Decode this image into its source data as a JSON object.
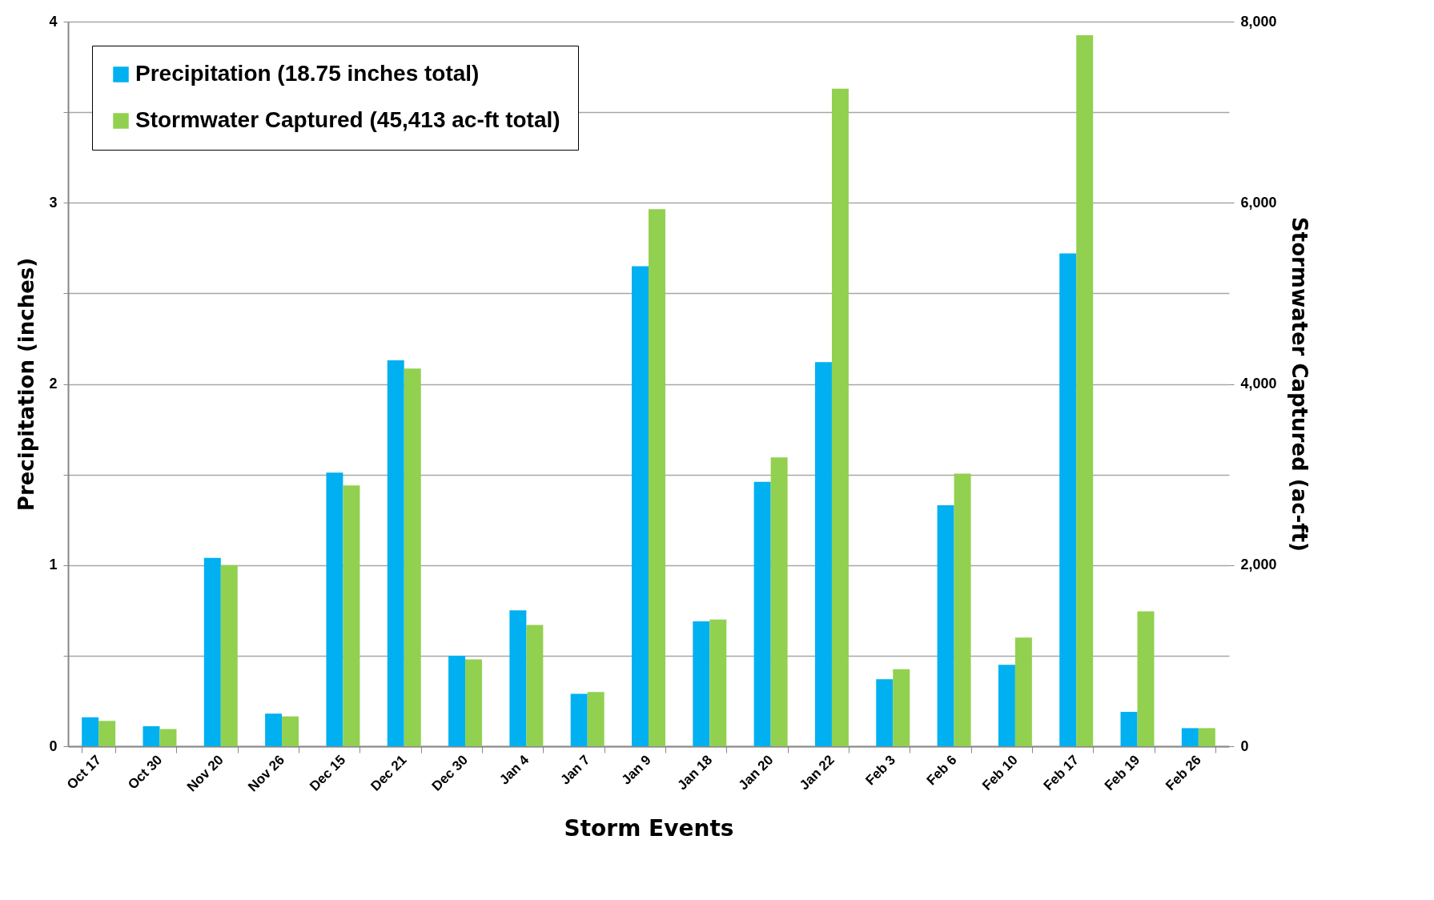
{
  "chart_data": {
    "type": "bar",
    "xlabel": "Storm Events",
    "ylabel": "Precipitation (inches)",
    "y2label": "Stormwater Captured (ac-ft)",
    "categories": [
      "Oct 17",
      "Oct 30",
      "Nov 20",
      "Nov 26",
      "Dec 15",
      "Dec 21",
      "Dec 30",
      "Jan 4",
      "Jan 7",
      "Jan 9",
      "Jan 18",
      "Jan 20",
      "Jan 22",
      "Feb 3",
      "Feb 6",
      "Feb 10",
      "Feb 17",
      "Feb 19",
      "Feb 26"
    ],
    "series": [
      {
        "name": "Precipitation (18.75 inches total)",
        "color": "#00b0f0",
        "values": [
          0.16,
          0.11,
          1.04,
          0.18,
          1.51,
          2.13,
          0.5,
          0.75,
          0.29,
          2.65,
          0.69,
          1.46,
          2.12,
          0.37,
          1.33,
          0.45,
          2.72,
          0.19,
          0.1
        ]
      },
      {
        "name": "Stormwater Captured (45,413 ac-ft total)",
        "color": "#92d050",
        "axis": "y2",
        "values": [
          280,
          190,
          2000,
          330,
          2880,
          4170,
          960,
          1340,
          600,
          5930,
          1400,
          3190,
          7260,
          850,
          3010,
          1200,
          7850,
          1490,
          200
        ]
      }
    ],
    "ylim": [
      0,
      4
    ],
    "yticks": [
      0,
      {
        "value": 0.5,
        "label": null
      },
      1,
      {
        "value": 1.5,
        "label": null
      },
      2,
      {
        "value": 2.5,
        "label": null
      },
      3,
      {
        "value": 3.5,
        "label": null
      },
      4
    ],
    "y2lim": [
      0,
      8000
    ],
    "y2ticks": [
      {
        "value": 0,
        "label": "0"
      },
      {
        "value": 2000,
        "label": "2,000"
      },
      {
        "value": 4000,
        "label": "4,000"
      },
      {
        "value": 6000,
        "label": "6,000"
      },
      {
        "value": 8000,
        "label": "8,000"
      }
    ],
    "grid": "y",
    "legend": "top left"
  }
}
